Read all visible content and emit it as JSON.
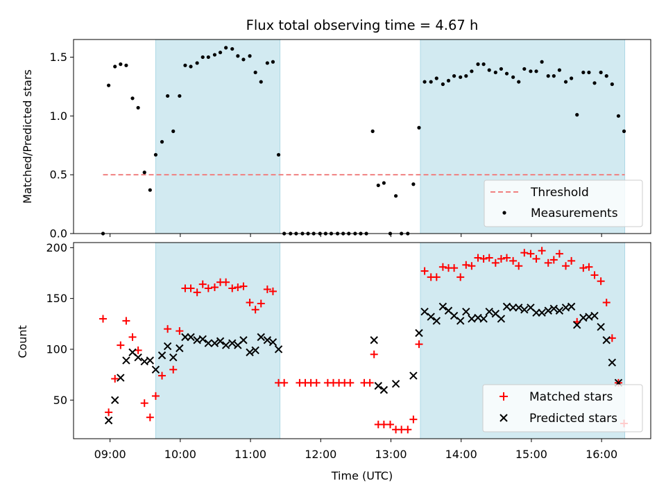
{
  "title": "Flux total observing time = 4.67 h",
  "x_axis": {
    "label": "Time (UTC)",
    "ticks": [
      9,
      10,
      11,
      12,
      13,
      14,
      15,
      16
    ],
    "tick_labels": [
      "09:00",
      "10:00",
      "11:00",
      "12:00",
      "13:00",
      "14:00",
      "15:00",
      "16:00"
    ],
    "range": [
      8.48,
      16.7
    ]
  },
  "shaded_intervals": [
    [
      9.65,
      11.42
    ],
    [
      13.42,
      16.33
    ]
  ],
  "colors": {
    "shade": "#add8e6",
    "threshold": "#f08080",
    "measurements": "#000000",
    "matched": "#ff0000",
    "predicted": "#000000"
  },
  "chart_data": [
    {
      "type": "scatter",
      "ylabel": "Matched/Predicted stars",
      "ylim": [
        0,
        1.65
      ],
      "yticks": [
        0.0,
        0.5,
        1.0,
        1.5
      ],
      "ytick_labels": [
        "0.0",
        "0.5",
        "1.0",
        "1.5"
      ],
      "threshold": {
        "name": "Threshold",
        "value": 0.5,
        "x_range": [
          8.9,
          16.33
        ]
      },
      "legend": {
        "position": "lower-right",
        "entries": [
          "Threshold",
          "Measurements"
        ]
      },
      "series": [
        {
          "name": "Measurements",
          "points": [
            [
              8.9,
              0.0
            ],
            [
              8.98,
              1.26
            ],
            [
              9.07,
              1.42
            ],
            [
              9.15,
              1.44
            ],
            [
              9.23,
              1.43
            ],
            [
              9.32,
              1.15
            ],
            [
              9.4,
              1.07
            ],
            [
              9.49,
              0.52
            ],
            [
              9.57,
              0.37
            ],
            [
              9.65,
              0.67
            ],
            [
              9.74,
              0.78
            ],
            [
              9.82,
              1.17
            ],
            [
              9.9,
              0.87
            ],
            [
              9.99,
              1.17
            ],
            [
              10.07,
              1.43
            ],
            [
              10.15,
              1.42
            ],
            [
              10.24,
              1.45
            ],
            [
              10.32,
              1.5
            ],
            [
              10.4,
              1.5
            ],
            [
              10.49,
              1.52
            ],
            [
              10.57,
              1.54
            ],
            [
              10.65,
              1.58
            ],
            [
              10.74,
              1.57
            ],
            [
              10.82,
              1.51
            ],
            [
              10.9,
              1.48
            ],
            [
              10.99,
              1.51
            ],
            [
              11.07,
              1.37
            ],
            [
              11.15,
              1.29
            ],
            [
              11.24,
              1.45
            ],
            [
              11.32,
              1.46
            ],
            [
              11.4,
              0.67
            ],
            [
              11.48,
              0.0
            ],
            [
              11.57,
              0.0
            ],
            [
              11.65,
              0.0
            ],
            [
              11.74,
              0.0
            ],
            [
              11.82,
              0.0
            ],
            [
              11.9,
              0.0
            ],
            [
              11.99,
              0.0
            ],
            [
              12.07,
              0.0
            ],
            [
              12.15,
              0.0
            ],
            [
              12.24,
              0.0
            ],
            [
              12.32,
              0.0
            ],
            [
              12.4,
              0.0
            ],
            [
              12.49,
              0.0
            ],
            [
              12.57,
              0.0
            ],
            [
              12.65,
              0.0
            ],
            [
              12.74,
              0.87
            ],
            [
              12.82,
              0.41
            ],
            [
              12.9,
              0.43
            ],
            [
              12.99,
              0.0
            ],
            [
              13.07,
              0.32
            ],
            [
              13.15,
              0.0
            ],
            [
              13.24,
              0.0
            ],
            [
              13.32,
              0.42
            ],
            [
              13.4,
              0.9
            ],
            [
              13.48,
              1.29
            ],
            [
              13.57,
              1.29
            ],
            [
              13.65,
              1.32
            ],
            [
              13.74,
              1.27
            ],
            [
              13.82,
              1.3
            ],
            [
              13.9,
              1.34
            ],
            [
              13.99,
              1.33
            ],
            [
              14.07,
              1.34
            ],
            [
              14.15,
              1.38
            ],
            [
              14.24,
              1.44
            ],
            [
              14.32,
              1.44
            ],
            [
              14.4,
              1.39
            ],
            [
              14.49,
              1.37
            ],
            [
              14.57,
              1.4
            ],
            [
              14.65,
              1.36
            ],
            [
              14.74,
              1.33
            ],
            [
              14.82,
              1.29
            ],
            [
              14.9,
              1.4
            ],
            [
              14.99,
              1.38
            ],
            [
              15.07,
              1.38
            ],
            [
              15.15,
              1.46
            ],
            [
              15.24,
              1.34
            ],
            [
              15.32,
              1.34
            ],
            [
              15.4,
              1.39
            ],
            [
              15.49,
              1.29
            ],
            [
              15.57,
              1.32
            ],
            [
              15.65,
              1.01
            ],
            [
              15.74,
              1.37
            ],
            [
              15.82,
              1.37
            ],
            [
              15.9,
              1.28
            ],
            [
              15.99,
              1.37
            ],
            [
              16.07,
              1.34
            ],
            [
              16.15,
              1.27
            ],
            [
              16.24,
              1.0
            ],
            [
              16.32,
              0.87
            ]
          ]
        }
      ]
    },
    {
      "type": "scatter",
      "ylabel": "Count",
      "ylim": [
        12,
        205
      ],
      "yticks": [
        50,
        100,
        150,
        200
      ],
      "ytick_labels": [
        "50",
        "100",
        "150",
        "200"
      ],
      "legend": {
        "position": "lower-right",
        "entries": [
          "Matched stars",
          "Predicted stars"
        ]
      },
      "series": [
        {
          "name": "Matched stars",
          "marker": "plus",
          "points": [
            [
              8.9,
              130
            ],
            [
              8.98,
              38
            ],
            [
              9.07,
              71
            ],
            [
              9.15,
              104
            ],
            [
              9.23,
              128
            ],
            [
              9.32,
              112
            ],
            [
              9.4,
              99
            ],
            [
              9.49,
              47
            ],
            [
              9.57,
              33
            ],
            [
              9.65,
              54
            ],
            [
              9.74,
              74
            ],
            [
              9.82,
              120
            ],
            [
              9.9,
              80
            ],
            [
              9.99,
              118
            ],
            [
              10.07,
              160
            ],
            [
              10.15,
              160
            ],
            [
              10.24,
              156
            ],
            [
              10.32,
              164
            ],
            [
              10.4,
              160
            ],
            [
              10.49,
              161
            ],
            [
              10.57,
              166
            ],
            [
              10.65,
              166
            ],
            [
              10.74,
              160
            ],
            [
              10.82,
              161
            ],
            [
              10.9,
              162
            ],
            [
              10.99,
              146
            ],
            [
              11.07,
              139
            ],
            [
              11.15,
              145
            ],
            [
              11.24,
              159
            ],
            [
              11.32,
              157
            ],
            [
              11.4,
              67
            ],
            [
              11.48,
              67
            ],
            [
              11.7,
              67
            ],
            [
              11.78,
              67
            ],
            [
              11.86,
              67
            ],
            [
              11.94,
              67
            ],
            [
              12.1,
              67
            ],
            [
              12.18,
              67
            ],
            [
              12.26,
              67
            ],
            [
              12.34,
              67
            ],
            [
              12.42,
              67
            ],
            [
              12.62,
              67
            ],
            [
              12.7,
              67
            ],
            [
              12.76,
              95
            ],
            [
              12.82,
              26
            ],
            [
              12.9,
              26
            ],
            [
              12.99,
              26
            ],
            [
              13.07,
              21
            ],
            [
              13.15,
              21
            ],
            [
              13.24,
              21
            ],
            [
              13.32,
              31
            ],
            [
              13.4,
              105
            ],
            [
              13.48,
              177
            ],
            [
              13.57,
              171
            ],
            [
              13.65,
              171
            ],
            [
              13.74,
              181
            ],
            [
              13.82,
              180
            ],
            [
              13.9,
              180
            ],
            [
              13.99,
              171
            ],
            [
              14.07,
              183
            ],
            [
              14.15,
              182
            ],
            [
              14.24,
              190
            ],
            [
              14.32,
              189
            ],
            [
              14.4,
              190
            ],
            [
              14.49,
              185
            ],
            [
              14.57,
              189
            ],
            [
              14.65,
              190
            ],
            [
              14.74,
              187
            ],
            [
              14.82,
              182
            ],
            [
              14.9,
              195
            ],
            [
              14.99,
              194
            ],
            [
              15.07,
              189
            ],
            [
              15.15,
              197
            ],
            [
              15.24,
              185
            ],
            [
              15.32,
              188
            ],
            [
              15.4,
              194
            ],
            [
              15.49,
              182
            ],
            [
              15.57,
              187
            ],
            [
              15.65,
              127
            ],
            [
              15.74,
              180
            ],
            [
              15.82,
              181
            ],
            [
              15.9,
              173
            ],
            [
              15.99,
              167
            ],
            [
              16.07,
              146
            ],
            [
              16.15,
              111
            ],
            [
              16.24,
              67
            ],
            [
              16.32,
              27
            ]
          ]
        },
        {
          "name": "Predicted stars",
          "marker": "x",
          "points": [
            [
              8.98,
              30
            ],
            [
              9.07,
              50
            ],
            [
              9.15,
              72
            ],
            [
              9.23,
              89
            ],
            [
              9.32,
              97
            ],
            [
              9.4,
              92
            ],
            [
              9.49,
              88
            ],
            [
              9.57,
              89
            ],
            [
              9.65,
              80
            ],
            [
              9.74,
              94
            ],
            [
              9.82,
              103
            ],
            [
              9.9,
              92
            ],
            [
              9.99,
              101
            ],
            [
              10.07,
              112
            ],
            [
              10.15,
              112
            ],
            [
              10.24,
              109
            ],
            [
              10.32,
              110
            ],
            [
              10.4,
              106
            ],
            [
              10.49,
              106
            ],
            [
              10.57,
              108
            ],
            [
              10.65,
              104
            ],
            [
              10.74,
              106
            ],
            [
              10.82,
              104
            ],
            [
              10.9,
              109
            ],
            [
              10.99,
              97
            ],
            [
              11.07,
              99
            ],
            [
              11.15,
              112
            ],
            [
              11.24,
              109
            ],
            [
              11.32,
              107
            ],
            [
              11.4,
              100
            ],
            [
              12.76,
              109
            ],
            [
              12.82,
              64
            ],
            [
              12.9,
              60
            ],
            [
              13.07,
              66
            ],
            [
              13.32,
              74
            ],
            [
              13.4,
              116
            ],
            [
              13.48,
              137
            ],
            [
              13.57,
              132
            ],
            [
              13.65,
              128
            ],
            [
              13.74,
              142
            ],
            [
              13.82,
              138
            ],
            [
              13.9,
              133
            ],
            [
              13.99,
              128
            ],
            [
              14.07,
              137
            ],
            [
              14.15,
              130
            ],
            [
              14.24,
              131
            ],
            [
              14.32,
              130
            ],
            [
              14.4,
              137
            ],
            [
              14.49,
              135
            ],
            [
              14.57,
              130
            ],
            [
              14.65,
              142
            ],
            [
              14.74,
              141
            ],
            [
              14.82,
              141
            ],
            [
              14.9,
              139
            ],
            [
              14.99,
              141
            ],
            [
              15.07,
              136
            ],
            [
              15.15,
              136
            ],
            [
              15.24,
              138
            ],
            [
              15.32,
              140
            ],
            [
              15.4,
              138
            ],
            [
              15.49,
              141
            ],
            [
              15.57,
              142
            ],
            [
              15.65,
              124
            ],
            [
              15.74,
              131
            ],
            [
              15.82,
              132
            ],
            [
              15.9,
              133
            ],
            [
              15.99,
              122
            ],
            [
              16.07,
              109
            ],
            [
              16.15,
              87
            ],
            [
              16.24,
              67
            ]
          ]
        }
      ]
    }
  ]
}
